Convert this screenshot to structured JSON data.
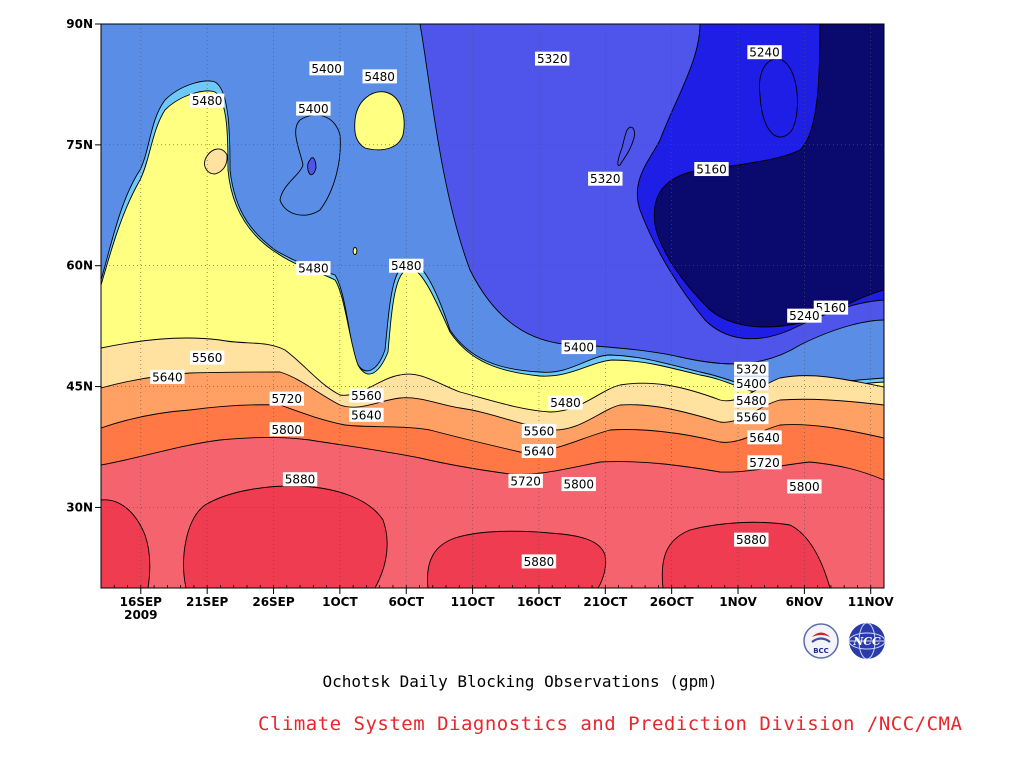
{
  "chart_data": {
    "type": "contour",
    "title": "Ochotsk Daily Blocking Observations (gpm)",
    "credit": "Climate System Diagnostics and Prediction Division /NCC/CMA",
    "y_ticks": [
      "90N",
      "75N",
      "60N",
      "45N",
      "30N"
    ],
    "x_ticks": [
      "16SEP",
      "21SEP",
      "26SEP",
      "1OCT",
      "6OCT",
      "11OCT",
      "16OCT",
      "21OCT",
      "26OCT",
      "1NOV",
      "6NOV",
      "11NOV"
    ],
    "x_year_label": "2009",
    "x_range": [
      "2009-09-13",
      "2009-11-11"
    ],
    "y_range_deg": [
      20,
      90
    ],
    "grid": true,
    "levels_gpm": [
      5160,
      5240,
      5320,
      5400,
      5480,
      5560,
      5640,
      5720,
      5800,
      5880
    ],
    "level_colors": [
      "#0a0a6e",
      "#1e1ee6",
      "#4f55eb",
      "#5a8ee6",
      "#6ec8fa",
      "#ffff82",
      "#ffe1a0",
      "#ffa064",
      "#ff7846",
      "#f5646e",
      "#f03c50"
    ],
    "contour_labels": [
      {
        "text": "5400",
        "date": "2009-09-30",
        "lat": 84.5
      },
      {
        "text": "5480",
        "date": "2009-10-04",
        "lat": 83.5
      },
      {
        "text": "5320",
        "date": "2009-10-17",
        "lat": 85.7
      },
      {
        "text": "5240",
        "date": "2009-11-02",
        "lat": 86.5
      },
      {
        "text": "5480",
        "date": "2009-09-21",
        "lat": 80.5
      },
      {
        "text": "5400",
        "date": "2009-09-29",
        "lat": 79.5
      },
      {
        "text": "5160",
        "date": "2009-10-29",
        "lat": 72.0
      },
      {
        "text": "5320",
        "date": "2009-10-21",
        "lat": 70.8
      },
      {
        "text": "5480",
        "date": "2009-09-29",
        "lat": 59.7
      },
      {
        "text": "5480",
        "date": "2009-10-06",
        "lat": 60.0
      },
      {
        "text": "5160",
        "date": "2009-11-07",
        "lat": 54.8
      },
      {
        "text": "5240",
        "date": "2009-11-05",
        "lat": 53.8
      },
      {
        "text": "5560",
        "date": "2009-09-21",
        "lat": 48.6
      },
      {
        "text": "5400",
        "date": "2009-10-19",
        "lat": 49.9
      },
      {
        "text": "5640",
        "date": "2009-09-18",
        "lat": 46.2
      },
      {
        "text": "5320",
        "date": "2009-11-01",
        "lat": 47.2
      },
      {
        "text": "5400",
        "date": "2009-11-01",
        "lat": 45.4
      },
      {
        "text": "5720",
        "date": "2009-09-27",
        "lat": 43.5
      },
      {
        "text": "5560",
        "date": "2009-10-03",
        "lat": 43.9
      },
      {
        "text": "5480",
        "date": "2009-10-18",
        "lat": 43.0
      },
      {
        "text": "5480",
        "date": "2009-11-01",
        "lat": 43.3
      },
      {
        "text": "5640",
        "date": "2009-10-03",
        "lat": 41.5
      },
      {
        "text": "5560",
        "date": "2009-11-01",
        "lat": 41.2
      },
      {
        "text": "5800",
        "date": "2009-09-27",
        "lat": 39.7
      },
      {
        "text": "5560",
        "date": "2009-10-16",
        "lat": 39.5
      },
      {
        "text": "5640",
        "date": "2009-11-02",
        "lat": 38.7
      },
      {
        "text": "5640",
        "date": "2009-10-16",
        "lat": 37.0
      },
      {
        "text": "5720",
        "date": "2009-11-02",
        "lat": 35.6
      },
      {
        "text": "5880",
        "date": "2009-09-28",
        "lat": 33.5
      },
      {
        "text": "5720",
        "date": "2009-10-15",
        "lat": 33.3
      },
      {
        "text": "5800",
        "date": "2009-10-19",
        "lat": 32.9
      },
      {
        "text": "5800",
        "date": "2009-11-05",
        "lat": 32.6
      },
      {
        "text": "5880",
        "date": "2009-11-01",
        "lat": 26.0
      },
      {
        "text": "5880",
        "date": "2009-10-16",
        "lat": 23.3
      }
    ]
  },
  "logos": [
    {
      "icon": "bcc-logo",
      "text": "BCC"
    },
    {
      "icon": "ncc-logo",
      "text": "NCC"
    }
  ]
}
